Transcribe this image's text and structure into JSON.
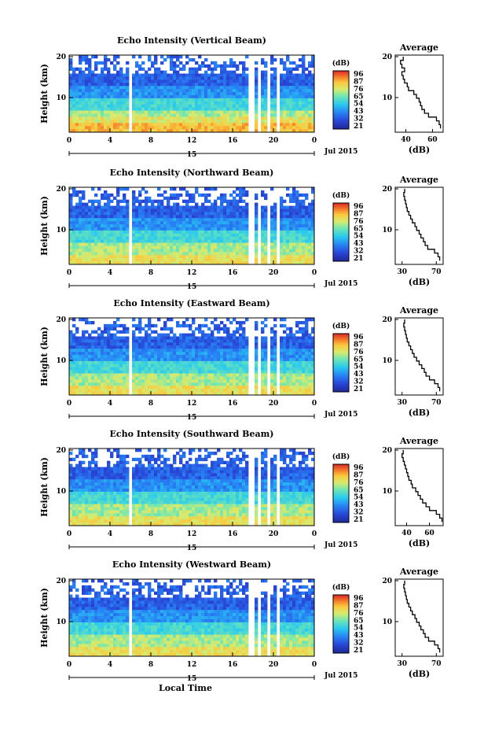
{
  "chart_data": [
    {
      "type": "heatmap",
      "title": "Echo Intensity (Vertical Beam)",
      "ylabel": "Height (km)",
      "x_ticks": [
        "0",
        "4",
        "8",
        "12",
        "16",
        "20",
        "0"
      ],
      "y_ticks": [
        "10",
        "20"
      ],
      "date_tick": "15",
      "month_label": "Jul 2015",
      "colorbar_unit": "(dB)",
      "colorbar_ticks": [
        "96",
        "87",
        "76",
        "65",
        "54",
        "43",
        "32",
        "21"
      ],
      "profile": {
        "title": "Average",
        "xlabel": "(dB)",
        "x_ticks": [
          "40",
          "60"
        ],
        "xlim": [
          32,
          68
        ],
        "y_ticks": [
          "10",
          "20"
        ],
        "heights_km": [
          2,
          3,
          4,
          5,
          6,
          7,
          8,
          9,
          10,
          11,
          12,
          13,
          14,
          15,
          16,
          17,
          18,
          19,
          20
        ],
        "values_db": [
          66,
          65,
          63,
          57,
          54,
          52,
          51,
          50,
          48,
          46,
          42,
          41,
          39,
          38,
          37,
          39,
          37,
          36,
          38
        ]
      }
    },
    {
      "type": "heatmap",
      "title": "Echo Intensity (Northward Beam)",
      "ylabel": "Height (km)",
      "x_ticks": [
        "0",
        "4",
        "8",
        "12",
        "16",
        "20",
        "0"
      ],
      "y_ticks": [
        "10",
        "20"
      ],
      "date_tick": "15",
      "month_label": "Jul 2015",
      "colorbar_unit": "(dB)",
      "colorbar_ticks": [
        "96",
        "87",
        "76",
        "65",
        "54",
        "43",
        "32",
        "21"
      ],
      "profile": {
        "title": "Average",
        "xlabel": "(dB)",
        "x_ticks": [
          "30",
          "70"
        ],
        "xlim": [
          22,
          78
        ],
        "y_ticks": [
          "10",
          "20"
        ],
        "heights_km": [
          2,
          3,
          4,
          5,
          6,
          7,
          8,
          9,
          10,
          11,
          12,
          13,
          14,
          15,
          16,
          17,
          18,
          19,
          20
        ],
        "values_db": [
          74,
          72,
          68,
          60,
          57,
          55,
          52,
          50,
          47,
          45,
          42,
          40,
          38,
          36,
          35,
          34,
          33,
          32,
          33
        ]
      }
    },
    {
      "type": "heatmap",
      "title": "Echo Intensity (Eastward Beam)",
      "ylabel": "Height (km)",
      "x_ticks": [
        "0",
        "4",
        "8",
        "12",
        "16",
        "20",
        "0"
      ],
      "y_ticks": [
        "10",
        "20"
      ],
      "date_tick": "15",
      "month_label": "Jul 2015",
      "colorbar_unit": "(dB)",
      "colorbar_ticks": [
        "96",
        "87",
        "76",
        "65",
        "54",
        "43",
        "32",
        "21"
      ],
      "profile": {
        "title": "Average",
        "xlabel": "(dB)",
        "x_ticks": [
          "30",
          "70"
        ],
        "xlim": [
          22,
          78
        ],
        "y_ticks": [
          "10",
          "20"
        ],
        "heights_km": [
          2,
          3,
          4,
          5,
          6,
          7,
          8,
          9,
          10,
          11,
          12,
          13,
          14,
          15,
          16,
          17,
          18,
          19,
          20
        ],
        "values_db": [
          74,
          72,
          68,
          62,
          58,
          56,
          53,
          50,
          47,
          44,
          42,
          40,
          38,
          36,
          35,
          34,
          33,
          32,
          33
        ]
      }
    },
    {
      "type": "heatmap",
      "title": "Echo Intensity (Southward Beam)",
      "ylabel": "Height (km)",
      "x_ticks": [
        "0",
        "4",
        "8",
        "12",
        "16",
        "20",
        "0"
      ],
      "y_ticks": [
        "10",
        "20"
      ],
      "date_tick": "15",
      "month_label": "Jul 2015",
      "colorbar_unit": "(dB)",
      "colorbar_ticks": [
        "96",
        "87",
        "76",
        "65",
        "54",
        "43",
        "32",
        "21"
      ],
      "profile": {
        "title": "Average",
        "xlabel": "(dB)",
        "x_ticks": [
          "40",
          "60"
        ],
        "xlim": [
          30,
          72
        ],
        "y_ticks": [
          "10",
          "20"
        ],
        "heights_km": [
          2,
          3,
          4,
          5,
          6,
          7,
          8,
          9,
          10,
          11,
          12,
          13,
          14,
          15,
          16,
          17,
          18,
          19,
          20
        ],
        "values_db": [
          71,
          69,
          66,
          60,
          57,
          54,
          52,
          50,
          48,
          45,
          44,
          42,
          41,
          40,
          39,
          38,
          37,
          36,
          37
        ]
      }
    },
    {
      "type": "heatmap",
      "title": "Echo Intensity (Westward Beam)",
      "ylabel": "Height (km)",
      "xlabel": "Local Time",
      "x_ticks": [
        "0",
        "4",
        "8",
        "12",
        "16",
        "20",
        "0"
      ],
      "y_ticks": [
        "10",
        "20"
      ],
      "date_tick": "15",
      "month_label": "Jul 2015",
      "colorbar_unit": "(dB)",
      "colorbar_ticks": [
        "96",
        "87",
        "76",
        "65",
        "54",
        "43",
        "32",
        "21"
      ],
      "profile": {
        "title": "Average",
        "xlabel": "(dB)",
        "x_ticks": [
          "30",
          "70"
        ],
        "xlim": [
          22,
          78
        ],
        "y_ticks": [
          "10",
          "20"
        ],
        "heights_km": [
          2,
          3,
          4,
          5,
          6,
          7,
          8,
          9,
          10,
          11,
          12,
          13,
          14,
          15,
          16,
          17,
          18,
          19,
          20
        ],
        "values_db": [
          74,
          72,
          68,
          61,
          57,
          55,
          52,
          50,
          47,
          45,
          42,
          40,
          38,
          36,
          35,
          34,
          33,
          32,
          33
        ]
      }
    }
  ]
}
